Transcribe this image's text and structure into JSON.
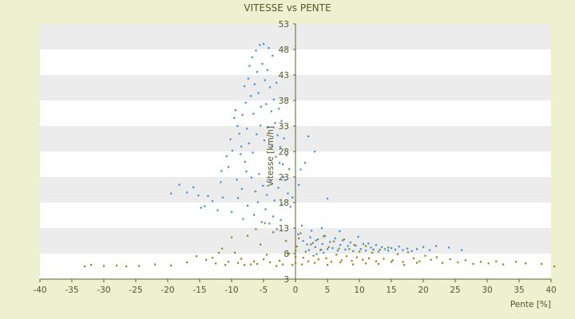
{
  "chart_data": {
    "type": "scatter",
    "title": "VITESSE vs PENTE",
    "xlabel": "Pente [%]",
    "ylabel": "Vitesse [km/h]",
    "xlim": [
      -40,
      40
    ],
    "ylim": [
      3,
      53
    ],
    "x_ticks": [
      "-40",
      "-35",
      "-30",
      "-25",
      "-20",
      "-15",
      "-10",
      "-5",
      "0",
      "5",
      "10",
      "15",
      "20",
      "25",
      "30",
      "35",
      "40"
    ],
    "y_ticks": [
      "3",
      "8",
      "13",
      "18",
      "23",
      "28",
      "33",
      "38",
      "43",
      "48",
      "53"
    ],
    "grid": "alternating horizontal bands",
    "colors": {
      "background": "#eef1cf",
      "plot": "#ffffff",
      "band": "#ececec",
      "series_1": "#3f8fd8",
      "series_2": "#8a8a10",
      "axis": "#5c5f2e"
    },
    "series": [
      {
        "color": "#3f8fd8",
        "points": [
          [
            -19.5,
            19.8
          ],
          [
            -18.2,
            21.5
          ],
          [
            -17.0,
            20.0
          ],
          [
            -16.0,
            21.0
          ],
          [
            -15.2,
            19.4
          ],
          [
            -14.8,
            17.0
          ],
          [
            -14.2,
            17.3
          ],
          [
            -13.7,
            19.3
          ],
          [
            -13.0,
            18.3
          ],
          [
            -12.2,
            16.5
          ],
          [
            -11.7,
            22.0
          ],
          [
            -11.4,
            19.0
          ],
          [
            -11.6,
            24.2
          ],
          [
            -10.8,
            27.1
          ],
          [
            -10.5,
            25.0
          ],
          [
            -10.2,
            30.4
          ],
          [
            -9.9,
            28.2
          ],
          [
            -9.6,
            34.6
          ],
          [
            -9.4,
            36.1
          ],
          [
            -9.1,
            33.0
          ],
          [
            -8.8,
            31.5
          ],
          [
            -8.5,
            29.0
          ],
          [
            -8.3,
            35.2
          ],
          [
            -8.0,
            40.8
          ],
          [
            -7.8,
            37.6
          ],
          [
            -7.6,
            32.5
          ],
          [
            -7.4,
            42.3
          ],
          [
            -7.2,
            44.8
          ],
          [
            -7.0,
            38.9
          ],
          [
            -6.8,
            46.5
          ],
          [
            -6.6,
            35.4
          ],
          [
            -6.4,
            41.2
          ],
          [
            -6.2,
            47.8
          ],
          [
            -6.0,
            43.6
          ],
          [
            -5.8,
            39.5
          ],
          [
            -5.6,
            48.9
          ],
          [
            -5.4,
            36.8
          ],
          [
            -5.2,
            45.2
          ],
          [
            -5.0,
            49.1
          ],
          [
            -4.8,
            42.0
          ],
          [
            -4.6,
            37.3
          ],
          [
            -4.4,
            44.0
          ],
          [
            -4.2,
            48.3
          ],
          [
            -4.0,
            40.6
          ],
          [
            -3.8,
            35.9
          ],
          [
            -3.6,
            46.8
          ],
          [
            -3.4,
            38.2
          ],
          [
            -3.2,
            33.6
          ],
          [
            -3.0,
            41.5
          ],
          [
            -2.8,
            31.2
          ],
          [
            -2.6,
            36.4
          ],
          [
            -2.4,
            28.9
          ],
          [
            -2.2,
            34.0
          ],
          [
            -2.0,
            25.5
          ],
          [
            -1.8,
            30.6
          ],
          [
            -1.6,
            22.4
          ],
          [
            -1.4,
            27.3
          ],
          [
            -1.2,
            19.8
          ],
          [
            -1.0,
            24.6
          ],
          [
            -0.8,
            17.2
          ],
          [
            -8.6,
            27.5
          ],
          [
            -7.9,
            26.0
          ],
          [
            -7.3,
            29.6
          ],
          [
            -6.7,
            27.8
          ],
          [
            -6.1,
            31.4
          ],
          [
            -5.5,
            33.1
          ],
          [
            -4.9,
            30.2
          ],
          [
            -4.3,
            32.8
          ],
          [
            -3.7,
            29.1
          ],
          [
            -3.1,
            27.0
          ],
          [
            -2.5,
            25.8
          ],
          [
            -1.9,
            23.0
          ],
          [
            -9.2,
            22.5
          ],
          [
            -8.4,
            20.7
          ],
          [
            -7.7,
            24.1
          ],
          [
            -6.9,
            22.9
          ],
          [
            -6.3,
            20.2
          ],
          [
            -5.7,
            23.6
          ],
          [
            -5.1,
            21.3
          ],
          [
            -4.5,
            19.5
          ],
          [
            -3.9,
            22.2
          ],
          [
            -3.3,
            18.4
          ],
          [
            -2.7,
            20.9
          ],
          [
            -2.1,
            17.6
          ],
          [
            -10.0,
            16.2
          ],
          [
            -9.0,
            18.9
          ],
          [
            -8.2,
            14.8
          ],
          [
            -7.5,
            17.4
          ],
          [
            -6.5,
            15.6
          ],
          [
            -5.9,
            18.1
          ],
          [
            -5.3,
            14.2
          ],
          [
            -4.7,
            16.7
          ],
          [
            -4.1,
            13.9
          ],
          [
            -3.5,
            15.3
          ],
          [
            -2.9,
            12.8
          ],
          [
            -2.3,
            14.6
          ],
          [
            1.2,
            10.5
          ],
          [
            1.8,
            9.8
          ],
          [
            2.3,
            11.2
          ],
          [
            2.7,
            10.1
          ],
          [
            3.1,
            9.3
          ],
          [
            3.5,
            10.8
          ],
          [
            3.9,
            8.7
          ],
          [
            4.2,
            9.9
          ],
          [
            4.6,
            11.5
          ],
          [
            5.0,
            8.9
          ],
          [
            5.4,
            10.3
          ],
          [
            5.8,
            9.1
          ],
          [
            6.2,
            11.0
          ],
          [
            6.6,
            8.6
          ],
          [
            7.0,
            9.7
          ],
          [
            7.4,
            10.6
          ],
          [
            7.8,
            8.8
          ],
          [
            8.2,
            9.5
          ],
          [
            8.6,
            10.2
          ],
          [
            9.0,
            8.5
          ],
          [
            9.4,
            9.6
          ],
          [
            9.8,
            11.3
          ],
          [
            10.2,
            8.9
          ],
          [
            10.6,
            9.9
          ],
          [
            11.0,
            8.6
          ],
          [
            11.4,
            10.0
          ],
          [
            11.8,
            9.2
          ],
          [
            12.2,
            8.8
          ],
          [
            12.6,
            9.7
          ],
          [
            13.0,
            8.4
          ],
          [
            13.5,
            9.3
          ],
          [
            14.0,
            8.9
          ],
          [
            14.5,
            8.6
          ],
          [
            15.0,
            9.1
          ],
          [
            15.6,
            8.8
          ],
          [
            16.2,
            9.4
          ],
          [
            16.8,
            8.7
          ],
          [
            17.5,
            9.0
          ],
          [
            18.2,
            8.5
          ],
          [
            19.0,
            8.9
          ],
          [
            20.0,
            9.3
          ],
          [
            21.0,
            8.7
          ],
          [
            22.0,
            9.5
          ],
          [
            24.0,
            9.2
          ],
          [
            26.0,
            8.7
          ],
          [
            2.5,
            12.5
          ],
          [
            4.1,
            13.0
          ],
          [
            6.9,
            12.4
          ],
          [
            0.8,
            24.5
          ],
          [
            2.0,
            31.0
          ],
          [
            3.0,
            28.0
          ],
          [
            5.0,
            18.8
          ],
          [
            1.5,
            25.8
          ],
          [
            0.5,
            21.5
          ],
          [
            -0.5,
            19.0
          ],
          [
            1.0,
            13.5
          ],
          [
            0.4,
            11.8
          ],
          [
            2.1,
            8.7
          ],
          [
            3.3,
            7.9
          ],
          [
            4.4,
            8.2
          ]
        ]
      },
      {
        "color": "#8a8a10",
        "points": [
          [
            -33.0,
            5.5
          ],
          [
            -32.0,
            5.8
          ],
          [
            -30.0,
            5.6
          ],
          [
            -28.0,
            5.7
          ],
          [
            -26.5,
            5.5
          ],
          [
            -24.5,
            5.6
          ],
          [
            -22.0,
            5.9
          ],
          [
            -19.5,
            5.7
          ],
          [
            -17.0,
            6.3
          ],
          [
            -15.5,
            7.5
          ],
          [
            -14.0,
            6.8
          ],
          [
            -13.0,
            7.2
          ],
          [
            -12.5,
            6.1
          ],
          [
            -11.5,
            9.0
          ],
          [
            -10.5,
            6.4
          ],
          [
            -9.5,
            8.2
          ],
          [
            -8.5,
            7.0
          ],
          [
            -7.5,
            11.5
          ],
          [
            -6.5,
            6.5
          ],
          [
            -5.5,
            9.8
          ],
          [
            -4.5,
            7.8
          ],
          [
            -3.5,
            12.2
          ],
          [
            -2.5,
            6.6
          ],
          [
            -1.5,
            10.5
          ],
          [
            -0.5,
            5.8
          ],
          [
            0.0,
            6.2
          ],
          [
            0.0,
            7.4
          ],
          [
            0.0,
            8.6
          ],
          [
            0.2,
            9.4
          ],
          [
            0.5,
            11.0
          ],
          [
            0.8,
            12.0
          ],
          [
            1.2,
            7.2
          ],
          [
            1.6,
            8.4
          ],
          [
            2.0,
            6.5
          ],
          [
            2.4,
            9.8
          ],
          [
            2.8,
            7.6
          ],
          [
            3.2,
            10.6
          ],
          [
            3.6,
            6.9
          ],
          [
            4.0,
            8.8
          ],
          [
            4.4,
            11.4
          ],
          [
            4.8,
            7.1
          ],
          [
            5.2,
            9.3
          ],
          [
            5.6,
            6.4
          ],
          [
            6.0,
            10.4
          ],
          [
            6.4,
            7.8
          ],
          [
            6.8,
            9.0
          ],
          [
            7.2,
            6.7
          ],
          [
            7.6,
            10.8
          ],
          [
            8.0,
            7.5
          ],
          [
            8.4,
            8.9
          ],
          [
            8.8,
            6.6
          ],
          [
            9.2,
            9.7
          ],
          [
            9.6,
            7.3
          ],
          [
            10.0,
            8.4
          ],
          [
            10.5,
            6.8
          ],
          [
            11.0,
            9.5
          ],
          [
            11.5,
            7.1
          ],
          [
            12.0,
            8.2
          ],
          [
            12.6,
            6.5
          ],
          [
            13.2,
            8.8
          ],
          [
            13.8,
            7.0
          ],
          [
            14.5,
            9.2
          ],
          [
            15.2,
            6.7
          ],
          [
            16.0,
            7.9
          ],
          [
            16.8,
            6.4
          ],
          [
            17.6,
            8.3
          ],
          [
            18.5,
            7.1
          ],
          [
            19.4,
            6.5
          ],
          [
            20.3,
            7.6
          ],
          [
            21.2,
            6.8
          ],
          [
            22.1,
            7.3
          ],
          [
            23.0,
            6.2
          ],
          [
            24.2,
            6.9
          ],
          [
            25.4,
            6.3
          ],
          [
            26.6,
            6.7
          ],
          [
            27.8,
            6.0
          ],
          [
            29.0,
            6.4
          ],
          [
            30.2,
            6.1
          ],
          [
            31.4,
            6.5
          ],
          [
            32.5,
            5.9
          ],
          [
            34.5,
            6.4
          ],
          [
            36.0,
            6.1
          ],
          [
            38.5,
            6.0
          ],
          [
            40.5,
            5.5
          ],
          [
            -8.0,
            5.8
          ],
          [
            -6.0,
            6.0
          ],
          [
            -4.0,
            6.3
          ],
          [
            -2.0,
            5.9
          ],
          [
            -1.0,
            8.0
          ],
          [
            -3.0,
            5.6
          ],
          [
            -5.0,
            6.9
          ],
          [
            -7.0,
            5.9
          ],
          [
            -9.0,
            6.2
          ],
          [
            -11.0,
            5.8
          ],
          [
            1.0,
            5.9
          ],
          [
            3.0,
            6.2
          ],
          [
            5.0,
            5.8
          ],
          [
            7.0,
            6.3
          ],
          [
            9.0,
            5.9
          ],
          [
            11.0,
            6.1
          ],
          [
            13.0,
            6.0
          ],
          [
            15.0,
            6.4
          ],
          [
            17.0,
            5.8
          ],
          [
            19.0,
            6.2
          ],
          [
            -12.0,
            8.2
          ],
          [
            -10.0,
            11.2
          ],
          [
            -6.2,
            12.8
          ],
          [
            -4.8,
            14.0
          ]
        ]
      }
    ]
  }
}
